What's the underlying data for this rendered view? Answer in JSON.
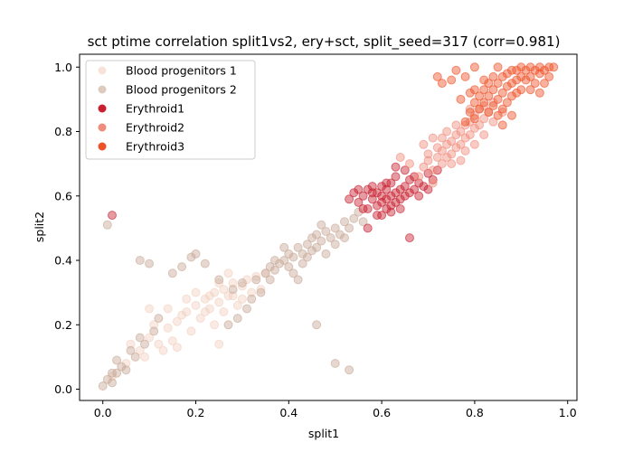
{
  "chart_data": {
    "type": "scatter",
    "title": "sct ptime correlation split1vs2, ery+sct, split_seed=317 (corr=0.981)",
    "xlabel": "split1",
    "ylabel": "split2",
    "xlim": [
      -0.05,
      1.02
    ],
    "ylim": [
      -0.035,
      1.04
    ],
    "xticks": [
      "0.0",
      "0.2",
      "0.4",
      "0.6",
      "0.8",
      "1.0"
    ],
    "yticks": [
      "0.0",
      "0.2",
      "0.4",
      "0.6",
      "0.8",
      "1.0"
    ],
    "grid": false,
    "legend_position": "top-left",
    "marker_alpha": 0.45,
    "series": [
      {
        "name": "Blood progenitors 1",
        "color": "#f2d1c0",
        "points": [
          [
            0.02,
            0.04
          ],
          [
            0.05,
            0.08
          ],
          [
            0.08,
            0.12
          ],
          [
            0.1,
            0.16
          ],
          [
            0.12,
            0.14
          ],
          [
            0.14,
            0.19
          ],
          [
            0.16,
            0.21
          ],
          [
            0.18,
            0.24
          ],
          [
            0.2,
            0.26
          ],
          [
            0.21,
            0.22
          ],
          [
            0.22,
            0.28
          ],
          [
            0.23,
            0.25
          ],
          [
            0.24,
            0.3
          ],
          [
            0.25,
            0.27
          ],
          [
            0.26,
            0.31
          ],
          [
            0.27,
            0.29
          ],
          [
            0.28,
            0.33
          ],
          [
            0.29,
            0.26
          ],
          [
            0.3,
            0.32
          ],
          [
            0.31,
            0.34
          ],
          [
            0.32,
            0.3
          ],
          [
            0.33,
            0.35
          ],
          [
            0.34,
            0.31
          ],
          [
            0.35,
            0.36
          ],
          [
            0.19,
            0.18
          ],
          [
            0.17,
            0.23
          ],
          [
            0.15,
            0.15
          ],
          [
            0.13,
            0.12
          ],
          [
            0.11,
            0.2
          ],
          [
            0.09,
            0.1
          ],
          [
            0.24,
            0.2
          ],
          [
            0.26,
            0.24
          ],
          [
            0.28,
            0.29
          ],
          [
            0.25,
            0.33
          ],
          [
            0.23,
            0.29
          ],
          [
            0.22,
            0.24
          ],
          [
            0.3,
            0.28
          ],
          [
            0.27,
            0.36
          ],
          [
            0.2,
            0.3
          ],
          [
            0.18,
            0.28
          ],
          [
            0.25,
            0.14
          ],
          [
            0.14,
            0.25
          ],
          [
            0.1,
            0.25
          ],
          [
            0.06,
            0.14
          ],
          [
            0.16,
            0.13
          ]
        ]
      },
      {
        "name": "Blood progenitors 2",
        "color": "#c7a896",
        "points": [
          [
            0.0,
            0.01
          ],
          [
            0.01,
            0.03
          ],
          [
            0.02,
            0.02
          ],
          [
            0.03,
            0.05
          ],
          [
            0.04,
            0.07
          ],
          [
            0.01,
            0.51
          ],
          [
            0.02,
            0.05
          ],
          [
            0.03,
            0.09
          ],
          [
            0.06,
            0.12
          ],
          [
            0.08,
            0.16
          ],
          [
            0.1,
            0.39
          ],
          [
            0.08,
            0.4
          ],
          [
            0.15,
            0.36
          ],
          [
            0.17,
            0.38
          ],
          [
            0.19,
            0.41
          ],
          [
            0.2,
            0.42
          ],
          [
            0.22,
            0.39
          ],
          [
            0.25,
            0.34
          ],
          [
            0.28,
            0.31
          ],
          [
            0.3,
            0.33
          ],
          [
            0.33,
            0.34
          ],
          [
            0.35,
            0.36
          ],
          [
            0.36,
            0.38
          ],
          [
            0.37,
            0.37
          ],
          [
            0.38,
            0.39
          ],
          [
            0.39,
            0.4
          ],
          [
            0.4,
            0.38
          ],
          [
            0.4,
            0.42
          ],
          [
            0.41,
            0.41
          ],
          [
            0.42,
            0.44
          ],
          [
            0.43,
            0.42
          ],
          [
            0.44,
            0.45
          ],
          [
            0.44,
            0.41
          ],
          [
            0.45,
            0.47
          ],
          [
            0.46,
            0.44
          ],
          [
            0.46,
            0.48
          ],
          [
            0.47,
            0.46
          ],
          [
            0.48,
            0.49
          ],
          [
            0.49,
            0.47
          ],
          [
            0.5,
            0.5
          ],
          [
            0.51,
            0.48
          ],
          [
            0.52,
            0.52
          ],
          [
            0.53,
            0.5
          ],
          [
            0.54,
            0.53
          ],
          [
            0.55,
            0.55
          ],
          [
            0.56,
            0.52
          ],
          [
            0.41,
            0.36
          ],
          [
            0.43,
            0.39
          ],
          [
            0.45,
            0.43
          ],
          [
            0.47,
            0.51
          ],
          [
            0.39,
            0.44
          ],
          [
            0.37,
            0.4
          ],
          [
            0.36,
            0.34
          ],
          [
            0.34,
            0.3
          ],
          [
            0.32,
            0.28
          ],
          [
            0.31,
            0.25
          ],
          [
            0.29,
            0.22
          ],
          [
            0.27,
            0.2
          ],
          [
            0.46,
            0.2
          ],
          [
            0.5,
            0.08
          ],
          [
            0.53,
            0.06
          ],
          [
            0.05,
            0.06
          ],
          [
            0.07,
            0.1
          ],
          [
            0.09,
            0.14
          ],
          [
            0.11,
            0.18
          ],
          [
            0.12,
            0.22
          ],
          [
            0.42,
            0.34
          ],
          [
            0.48,
            0.42
          ],
          [
            0.5,
            0.45
          ],
          [
            0.52,
            0.47
          ]
        ]
      },
      {
        "name": "Erythroid1",
        "color": "#c8202f",
        "points": [
          [
            0.02,
            0.54
          ],
          [
            0.53,
            0.59
          ],
          [
            0.54,
            0.61
          ],
          [
            0.55,
            0.58
          ],
          [
            0.56,
            0.6
          ],
          [
            0.57,
            0.62
          ],
          [
            0.57,
            0.56
          ],
          [
            0.58,
            0.59
          ],
          [
            0.58,
            0.63
          ],
          [
            0.59,
            0.57
          ],
          [
            0.59,
            0.61
          ],
          [
            0.6,
            0.58
          ],
          [
            0.6,
            0.6
          ],
          [
            0.6,
            0.63
          ],
          [
            0.61,
            0.56
          ],
          [
            0.61,
            0.59
          ],
          [
            0.61,
            0.62
          ],
          [
            0.62,
            0.57
          ],
          [
            0.62,
            0.6
          ],
          [
            0.62,
            0.64
          ],
          [
            0.63,
            0.58
          ],
          [
            0.63,
            0.61
          ],
          [
            0.63,
            0.66
          ],
          [
            0.64,
            0.59
          ],
          [
            0.64,
            0.62
          ],
          [
            0.65,
            0.6
          ],
          [
            0.65,
            0.63
          ],
          [
            0.66,
            0.61
          ],
          [
            0.66,
            0.65
          ],
          [
            0.67,
            0.62
          ],
          [
            0.67,
            0.66
          ],
          [
            0.68,
            0.64
          ],
          [
            0.69,
            0.63
          ],
          [
            0.7,
            0.67
          ],
          [
            0.71,
            0.65
          ],
          [
            0.72,
            0.68
          ],
          [
            0.59,
            0.54
          ],
          [
            0.6,
            0.54
          ],
          [
            0.62,
            0.55
          ],
          [
            0.56,
            0.56
          ],
          [
            0.66,
            0.47
          ],
          [
            0.57,
            0.5
          ],
          [
            0.58,
            0.61
          ],
          [
            0.61,
            0.64
          ],
          [
            0.64,
            0.56
          ],
          [
            0.68,
            0.6
          ],
          [
            0.7,
            0.62
          ],
          [
            0.63,
            0.69
          ],
          [
            0.65,
            0.68
          ],
          [
            0.55,
            0.62
          ]
        ]
      },
      {
        "name": "Erythroid2",
        "color": "#f08c7c",
        "points": [
          [
            0.68,
            0.66
          ],
          [
            0.69,
            0.69
          ],
          [
            0.7,
            0.71
          ],
          [
            0.71,
            0.68
          ],
          [
            0.72,
            0.72
          ],
          [
            0.73,
            0.7
          ],
          [
            0.73,
            0.74
          ],
          [
            0.74,
            0.72
          ],
          [
            0.74,
            0.76
          ],
          [
            0.75,
            0.73
          ],
          [
            0.75,
            0.77
          ],
          [
            0.76,
            0.75
          ],
          [
            0.76,
            0.79
          ],
          [
            0.77,
            0.76
          ],
          [
            0.77,
            0.8
          ],
          [
            0.78,
            0.78
          ],
          [
            0.78,
            0.82
          ],
          [
            0.79,
            0.79
          ],
          [
            0.79,
            0.83
          ],
          [
            0.8,
            0.81
          ],
          [
            0.8,
            0.85
          ],
          [
            0.81,
            0.82
          ],
          [
            0.81,
            0.87
          ],
          [
            0.82,
            0.84
          ],
          [
            0.82,
            0.88
          ],
          [
            0.83,
            0.86
          ],
          [
            0.84,
            0.89
          ],
          [
            0.72,
            0.75
          ],
          [
            0.7,
            0.73
          ],
          [
            0.75,
            0.7
          ],
          [
            0.78,
            0.74
          ],
          [
            0.8,
            0.76
          ],
          [
            0.73,
            0.78
          ],
          [
            0.76,
            0.82
          ],
          [
            0.79,
            0.87
          ],
          [
            0.66,
            0.7
          ],
          [
            0.64,
            0.72
          ],
          [
            0.71,
            0.64
          ],
          [
            0.77,
            0.71
          ],
          [
            0.82,
            0.79
          ],
          [
            0.84,
            0.83
          ],
          [
            0.86,
            0.86
          ],
          [
            0.69,
            0.76
          ],
          [
            0.74,
            0.8
          ],
          [
            0.71,
            0.78
          ]
        ]
      },
      {
        "name": "Erythroid3",
        "color": "#ee5127",
        "points": [
          [
            0.78,
            0.83
          ],
          [
            0.79,
            0.86
          ],
          [
            0.8,
            0.89
          ],
          [
            0.8,
            0.84
          ],
          [
            0.81,
            0.91
          ],
          [
            0.81,
            0.87
          ],
          [
            0.82,
            0.93
          ],
          [
            0.82,
            0.89
          ],
          [
            0.83,
            0.95
          ],
          [
            0.83,
            0.91
          ],
          [
            0.83,
            0.86
          ],
          [
            0.84,
            0.93
          ],
          [
            0.84,
            0.88
          ],
          [
            0.84,
            0.97
          ],
          [
            0.85,
            0.95
          ],
          [
            0.85,
            0.9
          ],
          [
            0.85,
            0.85
          ],
          [
            0.86,
            0.97
          ],
          [
            0.86,
            0.92
          ],
          [
            0.86,
            0.87
          ],
          [
            0.87,
            0.98
          ],
          [
            0.87,
            0.94
          ],
          [
            0.87,
            0.89
          ],
          [
            0.88,
            0.99
          ],
          [
            0.88,
            0.95
          ],
          [
            0.88,
            0.91
          ],
          [
            0.89,
            0.99
          ],
          [
            0.89,
            0.96
          ],
          [
            0.89,
            0.92
          ],
          [
            0.9,
            1.0
          ],
          [
            0.9,
            0.97
          ],
          [
            0.9,
            0.93
          ],
          [
            0.91,
            0.99
          ],
          [
            0.91,
            0.96
          ],
          [
            0.92,
            1.0
          ],
          [
            0.92,
            0.97
          ],
          [
            0.93,
            0.99
          ],
          [
            0.93,
            0.95
          ],
          [
            0.94,
            1.0
          ],
          [
            0.94,
            0.98
          ],
          [
            0.95,
            0.99
          ],
          [
            0.96,
            1.0
          ],
          [
            0.97,
            1.0
          ],
          [
            0.96,
            0.97
          ],
          [
            0.95,
            0.95
          ],
          [
            0.86,
            0.82
          ],
          [
            0.88,
            0.85
          ],
          [
            0.92,
            0.93
          ],
          [
            0.94,
            0.92
          ],
          [
            0.82,
            0.96
          ],
          [
            0.8,
            0.93
          ],
          [
            0.77,
            0.9
          ],
          [
            0.79,
            0.92
          ],
          [
            0.78,
            0.97
          ],
          [
            0.76,
            0.99
          ],
          [
            0.75,
            0.96
          ],
          [
            0.73,
            0.95
          ],
          [
            0.72,
            0.97
          ],
          [
            0.85,
            1.0
          ],
          [
            0.8,
            1.0
          ]
        ]
      }
    ]
  }
}
